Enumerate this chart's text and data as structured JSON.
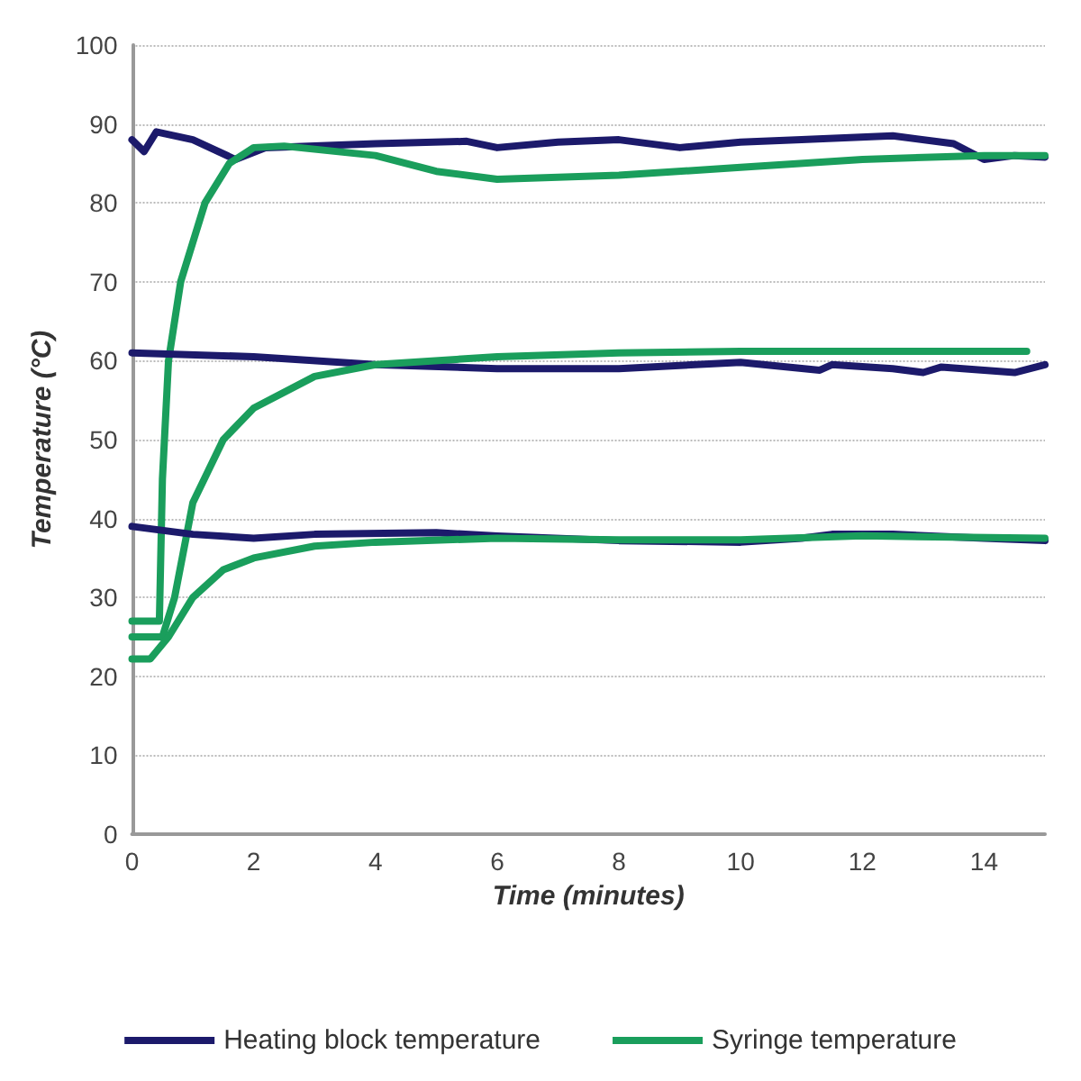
{
  "chart_data": {
    "type": "line",
    "xlabel": "Time (minutes)",
    "ylabel": "Temperature (°C)",
    "xlim": [
      0,
      15
    ],
    "xticks": [
      0,
      2,
      4,
      6,
      8,
      10,
      12,
      14
    ],
    "ylim": [
      0,
      100
    ],
    "yticks": [
      0,
      10,
      20,
      30,
      40,
      50,
      60,
      70,
      80,
      90,
      100
    ],
    "grid": "y",
    "legend": "bottom",
    "marker": "none",
    "line_style": "solid",
    "series": [
      {
        "name": "Heating block temperature",
        "color": "#1c1a6b",
        "x": [
          0,
          0.2,
          0.4,
          1,
          1.7,
          2.2,
          4,
          5.5,
          6,
          7,
          8,
          9,
          10,
          11,
          12.5,
          13.5,
          14,
          14.5,
          15
        ],
        "values": [
          88,
          86.5,
          89,
          88,
          85.5,
          87,
          87.5,
          87.8,
          87,
          87.7,
          88,
          87,
          87.7,
          88,
          88.5,
          87.5,
          85.5,
          86,
          85.8
        ]
      },
      {
        "name": "Syringe temperature",
        "color": "#1a9e5c",
        "x": [
          0,
          0.45,
          0.5,
          0.6,
          0.8,
          1.2,
          1.6,
          2,
          2.5,
          4,
          5,
          6,
          8,
          10,
          12,
          14,
          15
        ],
        "values": [
          27,
          27,
          45,
          60,
          70,
          80,
          85,
          87,
          87.2,
          86,
          84,
          83,
          83.5,
          84.5,
          85.5,
          86,
          86
        ]
      },
      {
        "color": "#1c1a6b",
        "x": [
          0,
          2,
          4,
          6,
          8,
          10,
          11.3,
          11.5,
          12.5,
          13,
          13.3,
          14,
          14.5,
          15
        ],
        "values": [
          61,
          60.5,
          59.5,
          59,
          59,
          59.8,
          58.8,
          59.5,
          59,
          58.5,
          59.2,
          58.8,
          58.5,
          59.5
        ]
      },
      {
        "color": "#1a9e5c",
        "x": [
          0,
          0.5,
          0.7,
          1,
          1.5,
          2,
          3,
          4,
          6,
          8,
          10,
          14.7
        ],
        "values": [
          25,
          25,
          30,
          42,
          50,
          54,
          58,
          59.5,
          60.5,
          61,
          61.2,
          61.2
        ]
      },
      {
        "color": "#1c1a6b",
        "x": [
          0,
          1,
          2,
          3,
          5,
          6,
          8,
          10,
          11,
          11.5,
          12.5,
          14,
          15
        ],
        "values": [
          39,
          38,
          37.5,
          38,
          38.2,
          37.8,
          37.2,
          37,
          37.5,
          38,
          38,
          37.5,
          37.2
        ]
      },
      {
        "color": "#1a9e5c",
        "x": [
          0,
          0.3,
          0.6,
          1,
          1.5,
          2,
          3,
          4,
          6,
          8,
          10,
          12,
          15
        ],
        "values": [
          22.2,
          22.2,
          25,
          30,
          33.5,
          35,
          36.5,
          37,
          37.5,
          37.3,
          37.3,
          37.8,
          37.5
        ]
      }
    ]
  }
}
